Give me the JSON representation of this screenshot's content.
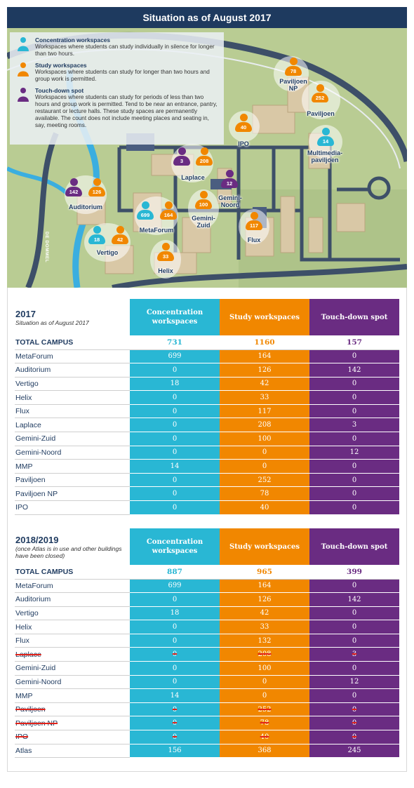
{
  "title": "Situation as of August 2017",
  "legend": {
    "concentration": {
      "title": "Concentration workspaces",
      "text": "Workspaces where students can study individually in silence for longer than two hours."
    },
    "study": {
      "title": "Study workspaces",
      "text": "Workspaces where students can study for longer than two hours and group work is permitted."
    },
    "touchdown": {
      "title": "Touch-down spot",
      "text": "Workspaces where students can study for periods of less than two hours and group work is permitted. Tend to be near an entrance, pantry, restaurant or lecture halls. These study spaces are permanently available. The count does not include meeting places and seating in, say, meeting rooms."
    }
  },
  "map": {
    "road_label": "DE DOMMEL",
    "buildings": {
      "paviljoen_np": "Paviljoen NP",
      "paviljoen": "Paviljoen",
      "ipo": "IPO",
      "multimedia": "Multimedia-paviljoen",
      "laplace": "Laplace",
      "gemini_noord": "Gemini-Noord",
      "auditorium": "Auditorium",
      "metaforum": "MetaForum",
      "gemini_zuid": "Gemini-Zuid",
      "flux": "Flux",
      "vertigo": "Vertigo",
      "helix": "Helix"
    },
    "pins": {
      "paviljoen_np_s": "78",
      "paviljoen_s": "252",
      "ipo_s": "40",
      "multimedia_c": "14",
      "laplace_t": "3",
      "laplace_s": "208",
      "gemini_noord_t": "12",
      "auditorium_t": "142",
      "auditorium_s": "126",
      "metaforum_c": "699",
      "metaforum_s": "164",
      "gemini_zuid_s": "100",
      "flux_s": "117",
      "vertigo_c": "18",
      "vertigo_s": "42",
      "helix_s": "33"
    }
  },
  "colors": {
    "concentration": "#29b7d4",
    "study": "#f18700",
    "touchdown": "#6a2c82",
    "navy": "#1e3a5f",
    "strike": "#e2231a"
  },
  "table2017": {
    "year": "2017",
    "subtitle": "Situation as of August 2017",
    "headers": [
      "Concentration workspaces",
      "Study workspaces",
      "Touch-down spot"
    ],
    "total": {
      "name": "TOTAL CAMPUS",
      "c": "731",
      "s": "1160",
      "t": "157"
    },
    "rows": [
      {
        "name": "MetaForum",
        "c": "699",
        "s": "164",
        "t": "0"
      },
      {
        "name": "Auditorium",
        "c": "0",
        "s": "126",
        "t": "142"
      },
      {
        "name": "Vertigo",
        "c": "18",
        "s": "42",
        "t": "0"
      },
      {
        "name": "Helix",
        "c": "0",
        "s": "33",
        "t": "0"
      },
      {
        "name": "Flux",
        "c": "0",
        "s": "117",
        "t": "0"
      },
      {
        "name": "Laplace",
        "c": "0",
        "s": "208",
        "t": "3"
      },
      {
        "name": "Gemini-Zuid",
        "c": "0",
        "s": "100",
        "t": "0"
      },
      {
        "name": "Gemini-Noord",
        "c": "0",
        "s": "0",
        "t": "12"
      },
      {
        "name": "MMP",
        "c": "14",
        "s": "0",
        "t": "0"
      },
      {
        "name": "Paviljoen",
        "c": "0",
        "s": "252",
        "t": "0"
      },
      {
        "name": "Paviljoen NP",
        "c": "0",
        "s": "78",
        "t": "0"
      },
      {
        "name": "IPO",
        "c": "0",
        "s": "40",
        "t": "0"
      }
    ]
  },
  "table2018": {
    "year": "2018/2019",
    "subtitle": "(once Atlas is in use and other buildings have been closed)",
    "headers": [
      "Concentration workspaces",
      "Study workspaces",
      "Touch-down spot"
    ],
    "total": {
      "name": "TOTAL CAMPUS",
      "c": "887",
      "s": "965",
      "t": "399"
    },
    "rows": [
      {
        "name": "MetaForum",
        "c": "699",
        "s": "164",
        "t": "0",
        "closed": false
      },
      {
        "name": "Auditorium",
        "c": "0",
        "s": "126",
        "t": "142",
        "closed": false
      },
      {
        "name": "Vertigo",
        "c": "18",
        "s": "42",
        "t": "0",
        "closed": false
      },
      {
        "name": "Helix",
        "c": "0",
        "s": "33",
        "t": "0",
        "closed": false
      },
      {
        "name": "Flux",
        "c": "0",
        "s": "132",
        "t": "0",
        "closed": false
      },
      {
        "name": "Laplace",
        "c": "0",
        "s": "208",
        "t": "3",
        "closed": true
      },
      {
        "name": "Gemini-Zuid",
        "c": "0",
        "s": "100",
        "t": "0",
        "closed": false
      },
      {
        "name": "Gemini-Noord",
        "c": "0",
        "s": "0",
        "t": "12",
        "closed": false
      },
      {
        "name": "MMP",
        "c": "14",
        "s": "0",
        "t": "0",
        "closed": false
      },
      {
        "name": "Paviljoen",
        "c": "0",
        "s": "252",
        "t": "0",
        "closed": true
      },
      {
        "name": "Paviljoen NP",
        "c": "0",
        "s": "78",
        "t": "0",
        "closed": true
      },
      {
        "name": "IPO",
        "c": "0",
        "s": "40",
        "t": "0",
        "closed": true
      },
      {
        "name": "Atlas",
        "c": "156",
        "s": "368",
        "t": "245",
        "closed": false
      }
    ]
  }
}
